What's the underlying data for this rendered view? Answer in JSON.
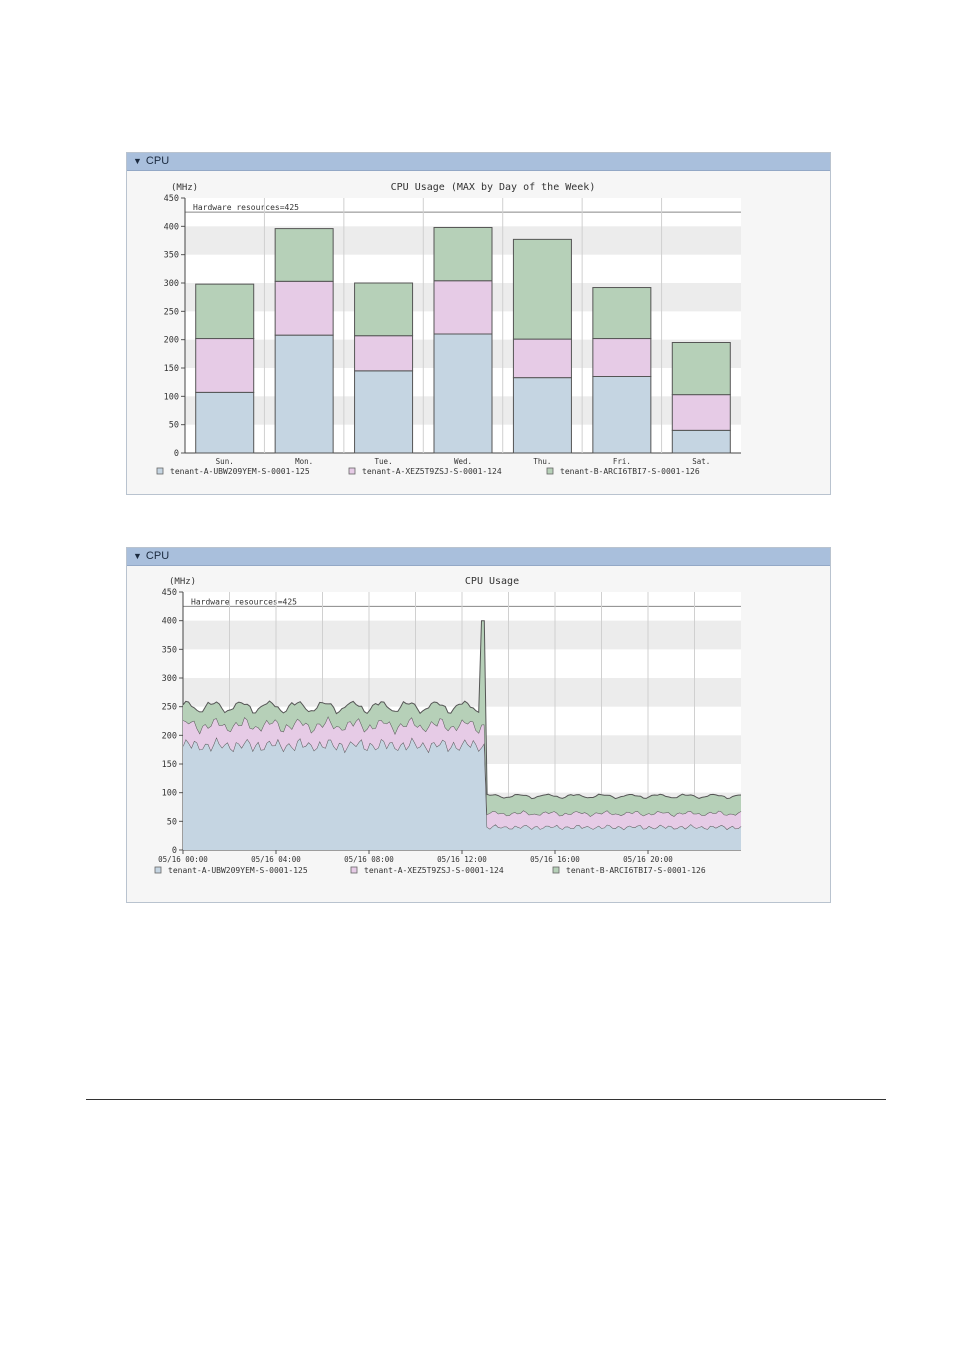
{
  "panels": [
    {
      "header": "CPU"
    },
    {
      "header": "CPU"
    }
  ],
  "colors": {
    "tenant_125": "#c5d5e2",
    "tenant_124": "#e6cbe6",
    "tenant_126": "#b6d0b8",
    "border": "#555555"
  },
  "chart_data": [
    {
      "type": "bar",
      "stacked": true,
      "title": "CPU Usage (MAX by Day of the Week)",
      "unit_label": "(MHz)",
      "threshold_label": "Hardware resources=425",
      "threshold": 425,
      "ylim": [
        0,
        450
      ],
      "y_ticks": [
        0,
        50,
        100,
        150,
        200,
        250,
        300,
        350,
        400,
        450
      ],
      "categories": [
        "Sun.",
        "Mon.",
        "Tue.",
        "Wed.",
        "Thu.",
        "Fri.",
        "Sat."
      ],
      "series": [
        {
          "name": "tenant-A-UBW209YEM-S-0001-125",
          "values": [
            107,
            208,
            145,
            210,
            133,
            135,
            40
          ]
        },
        {
          "name": "tenant-A-XEZ5T9ZSJ-S-0001-124",
          "values": [
            95,
            95,
            62,
            94,
            68,
            67,
            63
          ]
        },
        {
          "name": "tenant-B-ARCI6TBI7-S-0001-126",
          "values": [
            96,
            93,
            93,
            94,
            176,
            90,
            92
          ]
        }
      ],
      "legend": "bottom"
    },
    {
      "type": "area",
      "stacked": true,
      "title": "CPU Usage",
      "unit_label": "(MHz)",
      "threshold_label": "Hardware resources=425",
      "threshold": 425,
      "ylim": [
        0,
        450
      ],
      "y_ticks": [
        0,
        50,
        100,
        150,
        200,
        250,
        300,
        350,
        400,
        450
      ],
      "x_tick_labels": [
        "05/16 00:00",
        "05/16 04:00",
        "05/16 08:00",
        "05/16 12:00",
        "05/16 16:00",
        "05/16 20:00"
      ],
      "x_tick_hours": [
        0,
        4,
        8,
        12,
        16,
        20
      ],
      "xlim_hours": [
        0,
        24
      ],
      "spike": {
        "hour": 12.9,
        "value": 400
      },
      "series": [
        {
          "name": "tenant-A-UBW209YEM-S-0001-125",
          "level_before": 183,
          "level_after": 40
        },
        {
          "name": "tenant-A-XEZ5T9ZSJ-S-0001-124",
          "level_before": 35,
          "level_after": 24
        },
        {
          "name": "tenant-B-ARCI6TBI7-S-0001-126",
          "level_before": 32,
          "level_after": 30
        }
      ],
      "change_hour": 13.0,
      "legend": "bottom"
    }
  ]
}
